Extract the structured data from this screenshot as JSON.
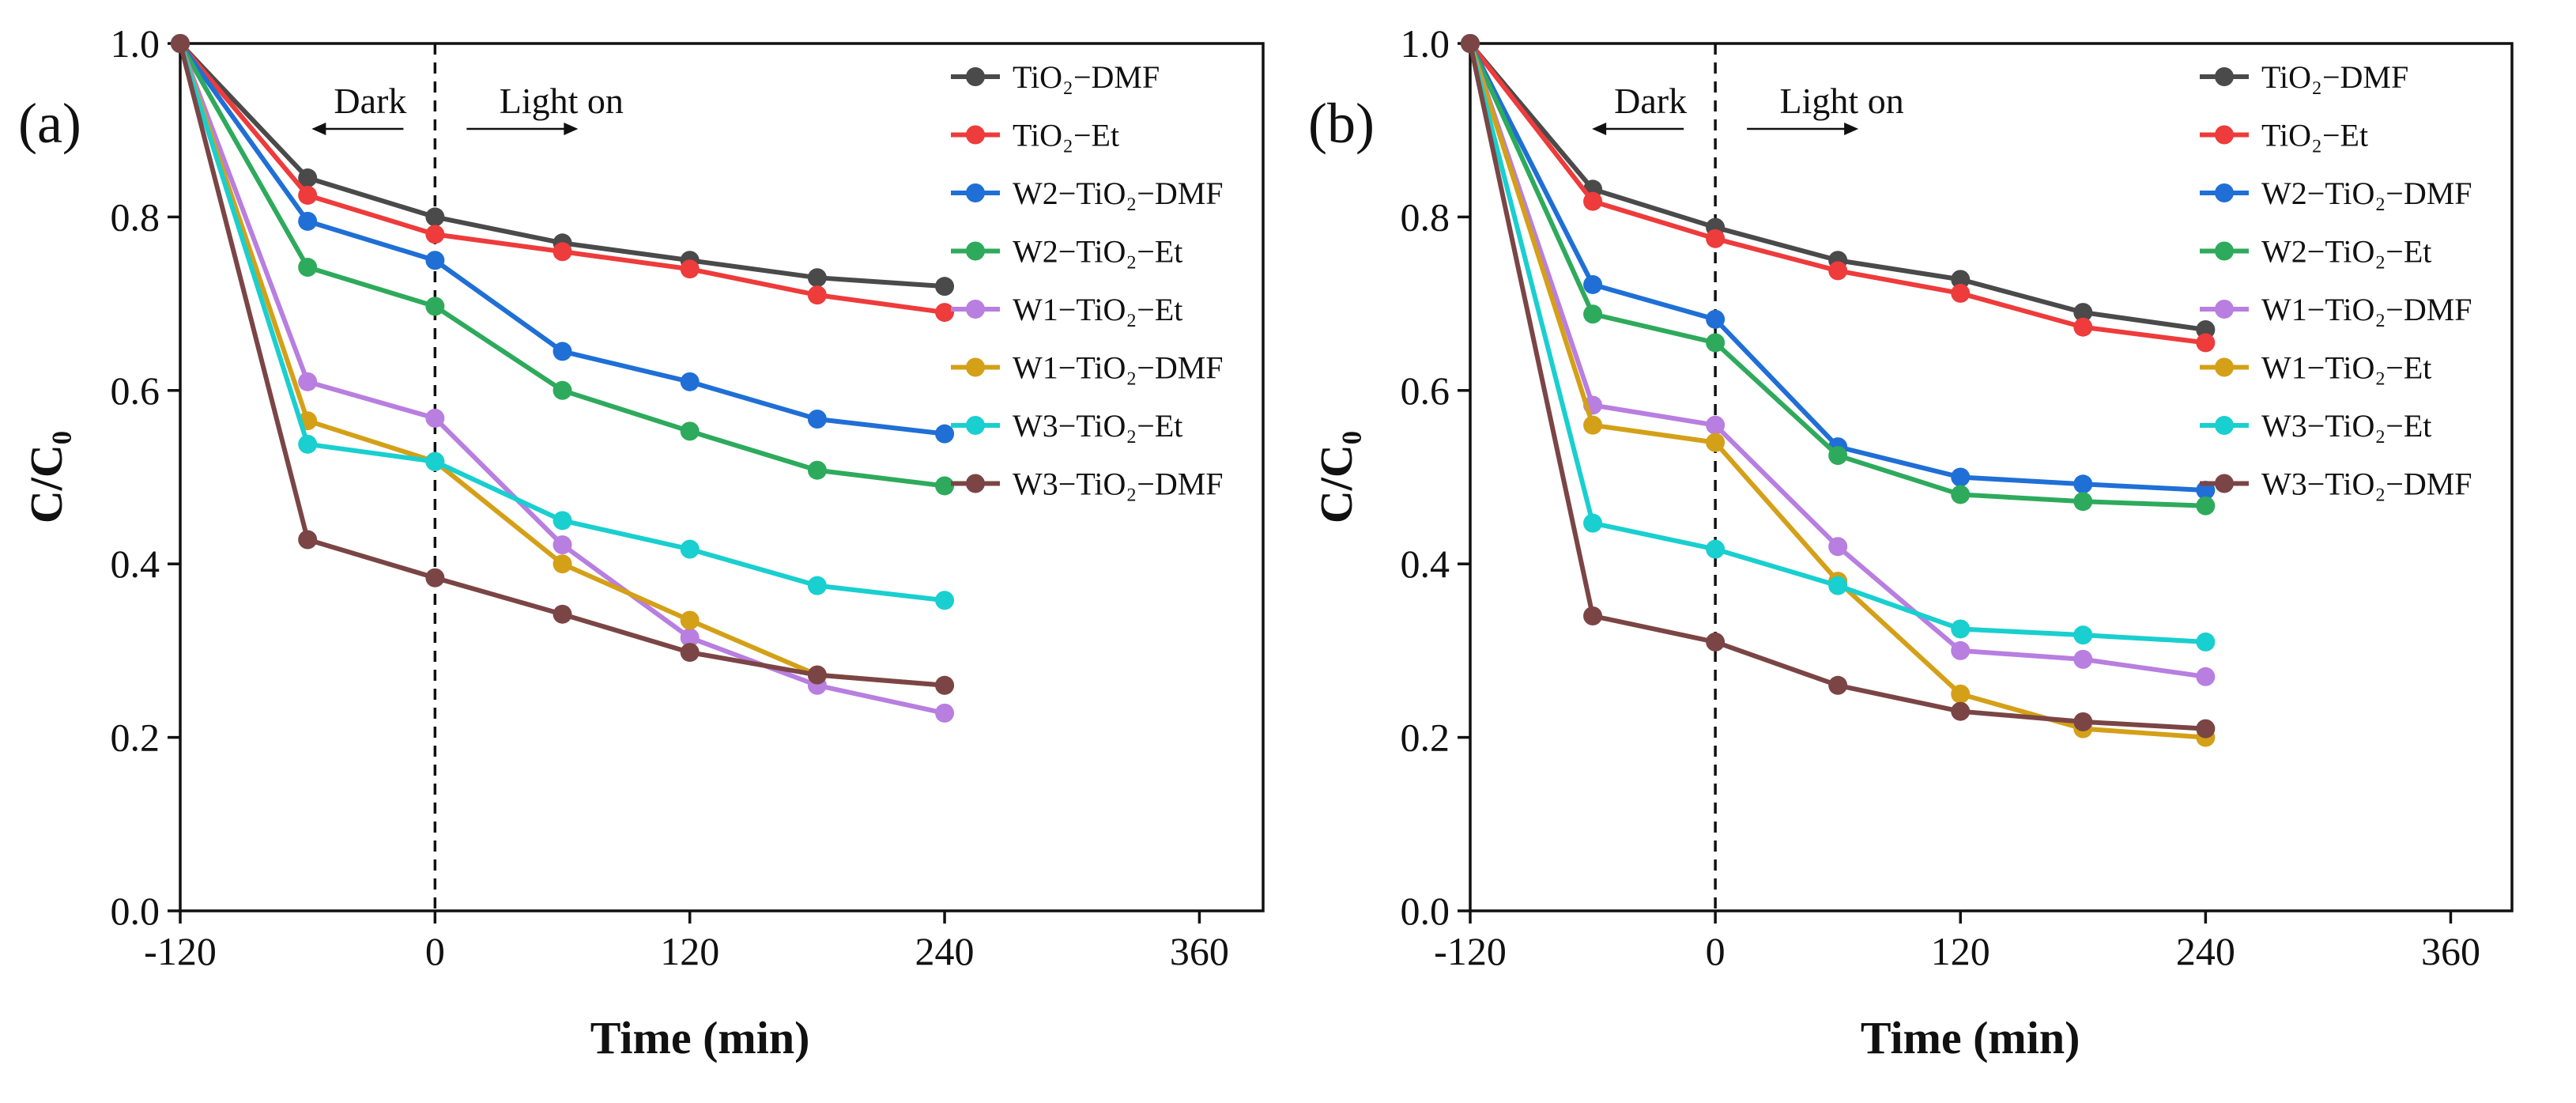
{
  "chart_data": [
    {
      "type": "line",
      "panel_label": "(a)",
      "xlabel": "Time (min)",
      "ylabel": "C/C₀",
      "xlim": [
        -120,
        390
      ],
      "ylim": [
        0,
        1.0
      ],
      "xticks": [
        -120,
        0,
        120,
        240,
        360
      ],
      "xtick_labels": [
        "-120",
        "0",
        "120",
        "240",
        "360"
      ],
      "yticks": [
        0,
        0.2,
        0.4,
        0.6,
        0.8,
        1.0
      ],
      "ytick_labels": [
        "0.0",
        "0.2",
        "0.4",
        "0.6",
        "0.8",
        "1.0"
      ],
      "annotations": {
        "dark": "Dark",
        "light": "Light on",
        "divider_x": 0
      },
      "x": [
        -120,
        -60,
        0,
        60,
        120,
        180,
        240
      ],
      "legend_position": "top-right",
      "series": [
        {
          "name": "TiO₂−DMF",
          "color": "#4a4a4a",
          "values": [
            1.0,
            0.845,
            0.8,
            0.77,
            0.75,
            0.73,
            0.72
          ]
        },
        {
          "name": "TiO₂−Et",
          "color": "#ee3b3b",
          "values": [
            1.0,
            0.825,
            0.78,
            0.76,
            0.74,
            0.71,
            0.69
          ]
        },
        {
          "name": "W2−TiO₂−DMF",
          "color": "#1f6fd6",
          "values": [
            1.0,
            0.795,
            0.75,
            0.645,
            0.61,
            0.567,
            0.55
          ]
        },
        {
          "name": "W2−TiO₂−Et",
          "color": "#2eaa5c",
          "values": [
            1.0,
            0.742,
            0.697,
            0.6,
            0.553,
            0.508,
            0.49
          ]
        },
        {
          "name": "W1−TiO₂−Et",
          "color": "#b87ee0",
          "values": [
            1.0,
            0.61,
            0.568,
            0.422,
            0.315,
            0.26,
            0.228
          ]
        },
        {
          "name": "W1−TiO₂−DMF",
          "color": "#d4a017",
          "values": [
            1.0,
            0.565,
            0.518,
            0.4,
            0.335,
            0.272,
            0.26
          ]
        },
        {
          "name": "W3−TiO₂−Et",
          "color": "#19cfcf",
          "values": [
            1.0,
            0.538,
            0.518,
            0.45,
            0.417,
            0.375,
            0.358
          ]
        },
        {
          "name": "W3−TiO₂−DMF",
          "color": "#7b4545",
          "values": [
            1.0,
            0.428,
            0.384,
            0.342,
            0.298,
            0.272,
            0.26
          ]
        }
      ]
    },
    {
      "type": "line",
      "panel_label": "(b)",
      "xlabel": "Time (min)",
      "ylabel": "C/C₀",
      "xlim": [
        -120,
        390
      ],
      "ylim": [
        0,
        1.0
      ],
      "xticks": [
        -120,
        0,
        120,
        240,
        360
      ],
      "xtick_labels": [
        "-120",
        "0",
        "120",
        "240",
        "360"
      ],
      "yticks": [
        0,
        0.2,
        0.4,
        0.6,
        0.8,
        1.0
      ],
      "ytick_labels": [
        "0.0",
        "0.2",
        "0.4",
        "0.6",
        "0.8",
        "1.0"
      ],
      "annotations": {
        "dark": "Dark",
        "light": "Light on",
        "divider_x": 0
      },
      "x": [
        -120,
        -60,
        0,
        60,
        120,
        180,
        240
      ],
      "legend_position": "top-right",
      "series": [
        {
          "name": "TiO₂−DMF",
          "color": "#4a4a4a",
          "values": [
            1.0,
            0.832,
            0.788,
            0.75,
            0.728,
            0.69,
            0.67
          ]
        },
        {
          "name": "TiO₂−Et",
          "color": "#ee3b3b",
          "values": [
            1.0,
            0.818,
            0.775,
            0.738,
            0.712,
            0.673,
            0.655
          ]
        },
        {
          "name": "W2−TiO₂−DMF",
          "color": "#1f6fd6",
          "values": [
            1.0,
            0.722,
            0.682,
            0.535,
            0.5,
            0.492,
            0.485
          ]
        },
        {
          "name": "W2−TiO₂−Et",
          "color": "#2eaa5c",
          "values": [
            1.0,
            0.688,
            0.655,
            0.525,
            0.48,
            0.472,
            0.467
          ]
        },
        {
          "name": "W1−TiO₂−DMF",
          "color": "#b87ee0",
          "values": [
            1.0,
            0.583,
            0.56,
            0.42,
            0.3,
            0.29,
            0.27
          ]
        },
        {
          "name": "W1−TiO₂−Et",
          "color": "#d4a017",
          "values": [
            1.0,
            0.56,
            0.54,
            0.38,
            0.25,
            0.21,
            0.2
          ]
        },
        {
          "name": "W3−TiO₂−Et",
          "color": "#19cfcf",
          "values": [
            1.0,
            0.447,
            0.417,
            0.375,
            0.325,
            0.318,
            0.31
          ]
        },
        {
          "name": "W3−TiO₂−DMF",
          "color": "#7b4545",
          "values": [
            1.0,
            0.34,
            0.31,
            0.26,
            0.23,
            0.218,
            0.21
          ]
        }
      ]
    }
  ]
}
